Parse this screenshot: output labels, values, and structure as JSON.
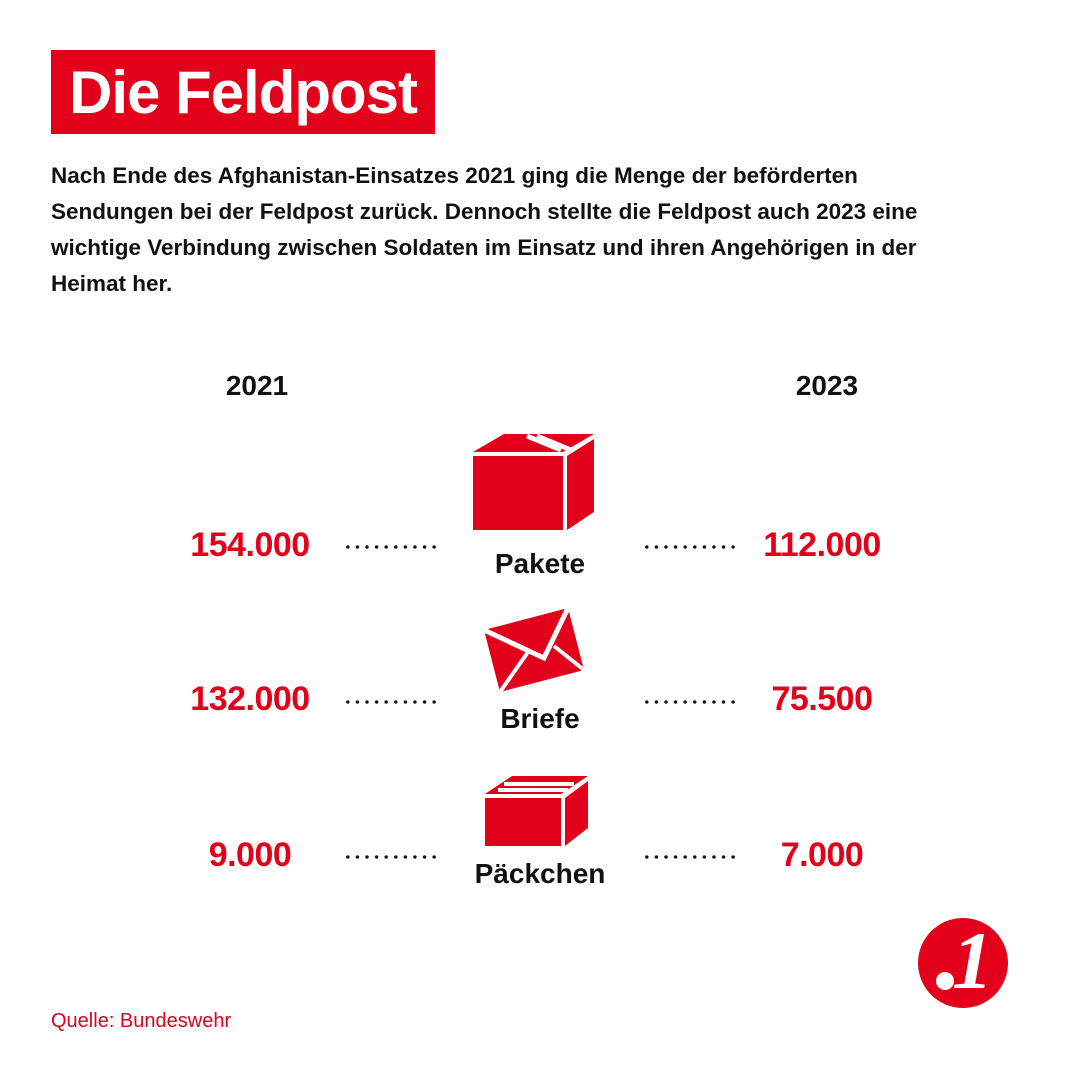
{
  "header": {
    "title": "Die Feldpost",
    "intro": "Nach Ende des Afghanistan-Einsatzes 2021 ging die Menge der beförderten Sendungen bei der Feldpost zurück. Dennoch stellte die Feldpost auch 2023 eine wichtige Verbindung zwischen Soldaten im Einsatz und ihren Angehörigen in der Heimat her."
  },
  "chart_data": {
    "type": "table",
    "title": "Die Feldpost",
    "columns": [
      "2021",
      "2023"
    ],
    "categories": [
      "Pakete",
      "Briefe",
      "Päckchen"
    ],
    "series": [
      {
        "name": "2021",
        "values": [
          154000,
          132000,
          9000
        ]
      },
      {
        "name": "2023",
        "values": [
          112000,
          75500,
          7000
        ]
      }
    ],
    "labels_2021": [
      "154.000",
      "132.000",
      "9.000"
    ],
    "labels_2023": [
      "112.000",
      "75.500",
      "7.000"
    ],
    "icons": [
      "box-icon",
      "envelope-icon",
      "small-parcel-icon"
    ]
  },
  "footer": {
    "source": "Quelle: Bundeswehr",
    "logo_text": "1"
  },
  "colors": {
    "accent": "#e2001a",
    "text": "#111111",
    "background": "#ffffff"
  }
}
